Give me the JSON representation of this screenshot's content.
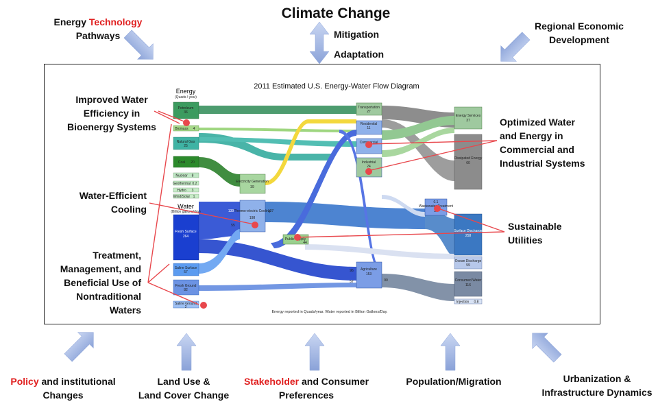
{
  "title": "Climate Change",
  "top_left": {
    "part1": "Energy",
    "part2": "Technology",
    "line2": "Pathways"
  },
  "top_center": {
    "mitigation": "Mitigation",
    "adaptation": "Adaptation"
  },
  "top_right": {
    "line1": "Regional Economic",
    "line2": "Development"
  },
  "left_labels": {
    "water_efficiency": [
      "Improved Water",
      "Efficiency in",
      "Bioenergy Systems"
    ],
    "cooling": [
      "Water-Efficient",
      "Cooling"
    ],
    "treatment": [
      "Treatment,",
      "Management, and",
      "Beneficial Use of",
      "Nontraditional",
      "Waters"
    ]
  },
  "right_labels": {
    "optimized": [
      "Optimized Water",
      "and Energy in",
      "Commercial and",
      "Industrial Systems"
    ],
    "utilities": [
      "Sustainable",
      "Utilities"
    ]
  },
  "bottom": {
    "policy": {
      "red": "Policy",
      "rest": " and institutional",
      "line2": "Changes"
    },
    "land": [
      "Land Use &",
      "Land Cover Change"
    ],
    "stakeholder": {
      "red": "Stakeholder",
      "rest": " and Consumer",
      "line2": "Preferences"
    },
    "population": "Population/Migration",
    "urban": [
      "Urbanization &",
      "Infrastructure Dynamics"
    ]
  },
  "diagram": {
    "title": "2011 Estimated U.S. Energy-Water Flow Diagram",
    "energy_header": "Energy",
    "energy_unit": "(Quads / year)",
    "water_header": "Water",
    "water_unit": "(Billion gallons/day)",
    "sources": [
      {
        "label": "Petroleum",
        "value": "36"
      },
      {
        "label": "Biomass",
        "value": "4"
      },
      {
        "label": "Natural Gas",
        "value": "25"
      },
      {
        "label": "Coal",
        "value": "20"
      },
      {
        "label": "Nuclear",
        "value": "8"
      },
      {
        "label": "Geothermal",
        "value": "0.2"
      },
      {
        "label": "Hydro",
        "value": "3"
      },
      {
        "label": "Wind/Solar",
        "value": "1"
      }
    ],
    "water_sources": [
      {
        "label": "Fresh Surface",
        "value": "264"
      },
      {
        "label": "Saline Surface",
        "value": "57"
      },
      {
        "label": "Fresh Ground",
        "value": "82"
      },
      {
        "label": "Saline Ground",
        "value": "2"
      }
    ],
    "mid": {
      "electricity": {
        "label": "Electricity Generation",
        "value": "39"
      },
      "thermo": {
        "label": "Thermo-electric Cooling",
        "value": "198"
      },
      "public": {
        "label": "Public Supply",
        "value": "44"
      },
      "agriculture": {
        "label": "Agriculture",
        "value": "153"
      }
    },
    "sectors": [
      {
        "label": "Transportation",
        "value": "27"
      },
      {
        "label": "Residential",
        "value": "11"
      },
      {
        "label": "Commercial",
        "value": "9"
      },
      {
        "label": "Industrial",
        "value": "24"
      }
    ],
    "wastewater": {
      "label": "Wastewater Treatment",
      "value": "26",
      "small": "0.1"
    },
    "right": [
      {
        "label": "Energy Services",
        "value": "37"
      },
      {
        "label": "Dissipated Energy",
        "value": "60"
      },
      {
        "label": "Surface Discharge",
        "value": "258"
      },
      {
        "label": "Ocean Discharge",
        "value": "59"
      },
      {
        "label": "Consumed Water",
        "value": "116"
      },
      {
        "label": "Injection",
        "value": "0.8"
      }
    ],
    "flow_values": {
      "thermo_in": "139",
      "thermo_side": "55",
      "thermo_out": "137",
      "ag_in": "96",
      "ag_ground": "57",
      "ag_out": "90"
    },
    "footnote": "Energy reported in Quads/year. Water reported in Billion Gallons/Day.",
    "colors": {
      "petroleum": "#2e8b57",
      "coal": "#1f7a1f",
      "water": "#1a3fd0",
      "sector": "#6f8fd8",
      "gray": "#888888",
      "highlight": "#e8474c",
      "arrow": "#9fb3e0"
    }
  }
}
